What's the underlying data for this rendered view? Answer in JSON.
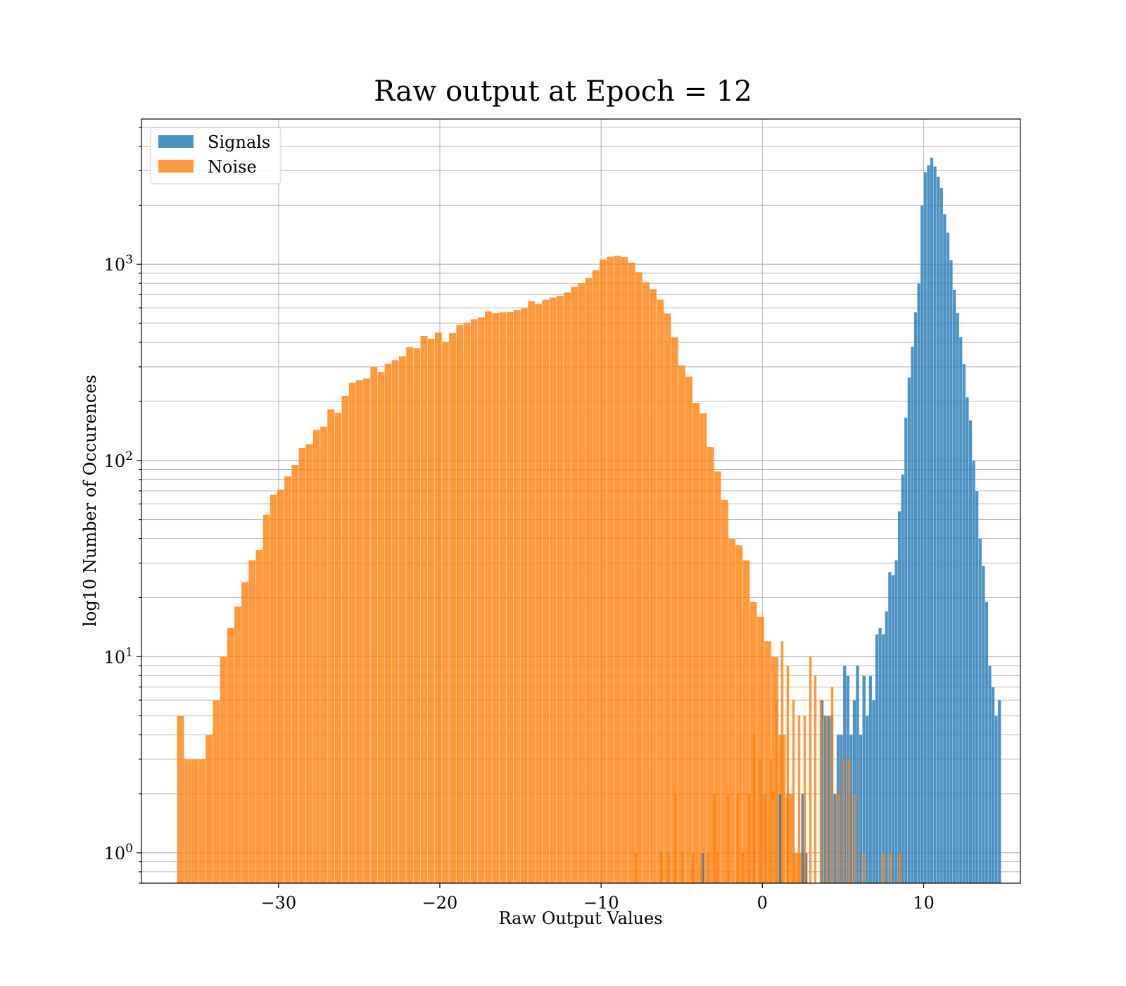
{
  "chart_data": {
    "type": "bar",
    "subtype": "overlaid-histogram",
    "title": "Raw output at Epoch = 12",
    "xlabel": "Raw Output Values",
    "ylabel": "log10 Number of Occurences",
    "y_scale": "log",
    "xlim": [
      -38.5,
      16.0
    ],
    "ylim": [
      0.7,
      5500
    ],
    "grid": true,
    "legend_position": "top-left",
    "x_ticks": [
      -30,
      -20,
      -10,
      0,
      10
    ],
    "x_tick_labels": [
      "−30",
      "−20",
      "−10",
      "0",
      "10"
    ],
    "y_ticks": [
      1,
      10,
      100,
      1000
    ],
    "y_tick_labels": [
      {
        "base": "10",
        "exp": "0"
      },
      {
        "base": "10",
        "exp": "1"
      },
      {
        "base": "10",
        "exp": "2"
      },
      {
        "base": "10",
        "exp": "3"
      }
    ],
    "series": [
      {
        "name": "Signals",
        "color": "#1f77b4",
        "opacity": 0.8,
        "bin_start": -3.8,
        "bin_width": 0.2,
        "values": [
          1,
          0,
          0,
          0,
          0,
          0,
          0,
          0,
          0,
          0,
          0,
          0,
          0,
          0,
          0,
          0,
          0,
          0,
          0,
          0,
          0,
          0,
          0,
          0,
          2,
          0,
          0,
          0,
          0,
          0,
          0,
          2,
          1,
          0,
          0,
          0,
          0,
          6,
          5,
          5,
          5,
          2,
          4,
          4,
          9,
          8,
          4,
          6,
          9,
          4,
          8,
          5,
          8,
          6,
          13,
          14,
          13,
          17,
          27,
          26,
          31,
          55,
          85,
          165,
          265,
          380,
          570,
          800,
          2000,
          2950,
          3200,
          3500,
          3150,
          2800,
          2450,
          1800,
          1450,
          1050,
          740,
          565,
          425,
          310,
          210,
          160,
          100,
          70,
          40,
          29,
          19,
          9,
          7,
          5,
          6
        ]
      },
      {
        "name": "Noise",
        "color": "#ff7f0e",
        "opacity": 0.8,
        "bin_start": -36.3,
        "bin_width": 0.444,
        "values": [
          5,
          3,
          3,
          3,
          4,
          6,
          10,
          14,
          18,
          24,
          31,
          35,
          53,
          67,
          71,
          83,
          95,
          116,
          121,
          143,
          149,
          182,
          175,
          214,
          249,
          257,
          262,
          301,
          283,
          311,
          325,
          340,
          378,
          374,
          432,
          418,
          449,
          403,
          446,
          491,
          505,
          525,
          537,
          575,
          565,
          570,
          572,
          586,
          598,
          650,
          627,
          660,
          677,
          691,
          719,
          768,
          802,
          851,
          933,
          1060,
          1095,
          1106,
          1090,
          1020,
          913,
          811,
          748,
          660,
          562,
          425,
          305,
          268,
          197,
          174,
          117,
          88,
          63,
          40,
          37,
          31,
          19,
          16,
          12,
          10,
          4,
          2,
          1,
          1
        ]
      }
    ],
    "noise_extra_bars": [
      {
        "x": -7.93,
        "value": 1
      },
      {
        "x": -6.34,
        "value": 1
      },
      {
        "x": -5.9,
        "value": 1
      },
      {
        "x": -5.49,
        "value": 2
      },
      {
        "x": -5.04,
        "value": 1
      },
      {
        "x": -4.37,
        "value": 1
      },
      {
        "x": -3.85,
        "value": 1
      },
      {
        "x": -3.45,
        "value": 1
      },
      {
        "x": -3.05,
        "value": 2
      },
      {
        "x": -2.85,
        "value": 1
      },
      {
        "x": -2.2,
        "value": 2
      },
      {
        "x": -1.6,
        "value": 2
      },
      {
        "x": -1.3,
        "value": 1
      },
      {
        "x": -0.9,
        "value": 2
      },
      {
        "x": -0.6,
        "value": 4
      },
      {
        "x": -0.2,
        "value": 3
      },
      {
        "x": 0.1,
        "value": 2
      },
      {
        "x": 0.45,
        "value": 3
      },
      {
        "x": 0.8,
        "value": 6
      },
      {
        "x": 1.15,
        "value": 12
      },
      {
        "x": 1.5,
        "value": 9
      },
      {
        "x": 1.85,
        "value": 6
      },
      {
        "x": 2.2,
        "value": 5
      },
      {
        "x": 2.55,
        "value": 5
      },
      {
        "x": 2.9,
        "value": 10
      },
      {
        "x": 3.2,
        "value": 8
      },
      {
        "x": 3.55,
        "value": 6
      },
      {
        "x": 3.9,
        "value": 5
      },
      {
        "x": 4.25,
        "value": 7
      },
      {
        "x": 4.6,
        "value": 2
      },
      {
        "x": 4.95,
        "value": 3
      },
      {
        "x": 5.3,
        "value": 3
      },
      {
        "x": 5.65,
        "value": 2
      },
      {
        "x": 6.2,
        "value": 1
      },
      {
        "x": 7.4,
        "value": 1
      },
      {
        "x": 7.85,
        "value": 1
      },
      {
        "x": 8.45,
        "value": 1
      }
    ]
  }
}
